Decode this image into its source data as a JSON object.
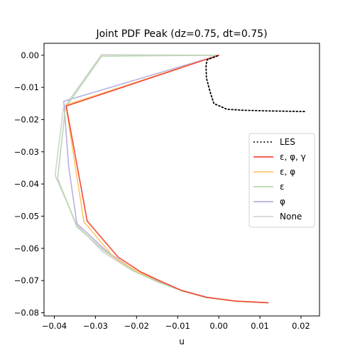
{
  "chart_data": {
    "type": "line",
    "title": "Joint PDF Peak (dz=0.75, dt=0.75)",
    "xlabel": "u",
    "ylabel": "",
    "xlim": [
      -0.0425,
      0.0245
    ],
    "ylim": [
      -0.081,
      0.0037
    ],
    "x_ticks": [
      -0.04,
      -0.03,
      -0.02,
      -0.01,
      0.0,
      0.01,
      0.02
    ],
    "x_tick_labels": [
      "−0.04",
      "−0.03",
      "−0.02",
      "−0.01",
      "0.00",
      "0.01",
      "0.02"
    ],
    "y_ticks": [
      0.0,
      -0.01,
      -0.02,
      -0.03,
      -0.04,
      -0.05,
      -0.06,
      -0.07,
      -0.08
    ],
    "y_tick_labels": [
      "0.00",
      "−0.01",
      "−0.02",
      "−0.03",
      "−0.04",
      "−0.05",
      "−0.06",
      "−0.07",
      "−0.08"
    ],
    "grid": false,
    "legend_position": "center-right",
    "series": [
      {
        "name": "None",
        "color": "#d4d4d4",
        "dash": "solid",
        "points": [
          [
            0.012,
            -0.0769
          ],
          [
            0.004,
            -0.0764
          ],
          [
            -0.003,
            -0.0753
          ],
          [
            -0.009,
            -0.0732
          ],
          [
            -0.015,
            -0.0703
          ],
          [
            -0.021,
            -0.0669
          ],
          [
            -0.028,
            -0.0613
          ],
          [
            -0.0345,
            -0.0528
          ],
          [
            -0.0398,
            -0.0373
          ],
          [
            -0.0378,
            -0.0165
          ],
          [
            -0.0285,
            0.0002
          ],
          [
            0.0,
            0.0
          ]
        ]
      },
      {
        "name": "φ",
        "color": "#b6b0e0",
        "dash": "solid",
        "points": [
          [
            0.012,
            -0.0769
          ],
          [
            0.004,
            -0.0764
          ],
          [
            -0.003,
            -0.0752
          ],
          [
            -0.009,
            -0.0731
          ],
          [
            -0.0145,
            -0.0703
          ],
          [
            -0.02,
            -0.0672
          ],
          [
            -0.027,
            -0.0612
          ],
          [
            -0.0345,
            -0.0523
          ],
          [
            -0.0365,
            -0.0345
          ],
          [
            -0.0377,
            -0.0143
          ],
          [
            0.0,
            0.0
          ]
        ]
      },
      {
        "name": "ε",
        "color": "#b9d7b0",
        "dash": "solid",
        "points": [
          [
            0.012,
            -0.0769
          ],
          [
            0.004,
            -0.0764
          ],
          [
            -0.003,
            -0.0753
          ],
          [
            -0.009,
            -0.0732
          ],
          [
            -0.015,
            -0.0704
          ],
          [
            -0.021,
            -0.0668
          ],
          [
            -0.0278,
            -0.0608
          ],
          [
            -0.0345,
            -0.0533
          ],
          [
            -0.0392,
            -0.0383
          ],
          [
            -0.0373,
            -0.0163
          ],
          [
            -0.0285,
            -0.0003
          ],
          [
            0.0,
            0.0
          ]
        ]
      },
      {
        "name": "ε, φ",
        "color": "#ffc66a",
        "dash": "solid",
        "points": [
          [
            0.012,
            -0.0769
          ],
          [
            0.004,
            -0.0764
          ],
          [
            -0.003,
            -0.0752
          ],
          [
            -0.009,
            -0.0731
          ],
          [
            -0.0145,
            -0.0701
          ],
          [
            -0.0195,
            -0.0674
          ],
          [
            -0.0255,
            -0.0628
          ],
          [
            -0.0328,
            -0.0518
          ],
          [
            -0.0372,
            -0.0155
          ],
          [
            0.0,
            0.0
          ]
        ]
      },
      {
        "name": "ε, φ, γ",
        "color": "#f04a3a",
        "dash": "solid",
        "points": [
          [
            0.012,
            -0.0769
          ],
          [
            0.004,
            -0.0764
          ],
          [
            -0.003,
            -0.0752
          ],
          [
            -0.009,
            -0.0731
          ],
          [
            -0.0145,
            -0.07
          ],
          [
            -0.019,
            -0.0673
          ],
          [
            -0.0245,
            -0.0627
          ],
          [
            -0.032,
            -0.0515
          ],
          [
            -0.0371,
            -0.0158
          ],
          [
            0.0,
            0.0
          ]
        ]
      },
      {
        "name": "LES",
        "color": "#000000",
        "dash": "dotted",
        "points": [
          [
            -0.0003,
            -0.0002
          ],
          [
            -0.0028,
            -0.0014
          ],
          [
            -0.0031,
            -0.003
          ],
          [
            -0.003,
            -0.007
          ],
          [
            -0.0022,
            -0.011
          ],
          [
            -0.0012,
            -0.015
          ],
          [
            0.002,
            -0.0168
          ],
          [
            0.006,
            -0.0171
          ],
          [
            0.012,
            -0.0173
          ],
          [
            0.021,
            -0.0175
          ]
        ]
      }
    ],
    "legend_order": [
      "LES",
      "ε, φ, γ",
      "ε, φ",
      "ε",
      "φ",
      "None"
    ]
  }
}
